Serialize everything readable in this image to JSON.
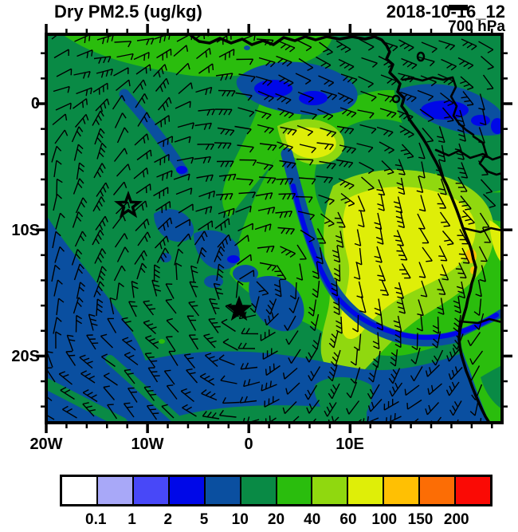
{
  "header": {
    "title_left": "Dry PM2.5 (ug/kg)",
    "title_right": "2018-10-16_12",
    "level": "700 hPa"
  },
  "map": {
    "x_ticks": [
      {
        "label": "20W",
        "lon": -20
      },
      {
        "label": "10W",
        "lon": -10
      },
      {
        "label": "0",
        "lon": 0
      },
      {
        "label": "10E",
        "lon": 10
      }
    ],
    "y_ticks": [
      {
        "label": "0",
        "lat": 0
      },
      {
        "label": "10S",
        "lat": -10
      },
      {
        "label": "20S",
        "lat": -20
      }
    ],
    "minor_tick_step_deg": 2,
    "extent": {
      "lon_min": -20,
      "lon_max": 25,
      "lat_min": -25.3,
      "lat_max": 5.5
    }
  },
  "colorbar": {
    "labels": [
      "0.1",
      "1",
      "2",
      "5",
      "10",
      "20",
      "40",
      "60",
      "100",
      "150",
      "200"
    ],
    "colors": [
      "#ffffff",
      "#a8a8f8",
      "#4848f8",
      "#0008e8",
      "#0a4fa0",
      "#098a45",
      "#2abd0d",
      "#90d80f",
      "#dfee08",
      "#ffc003",
      "#fc6d05",
      "#fa0a05"
    ]
  },
  "chart_data": {
    "type": "heatmap",
    "subtype": "filled-contour-map-with-wind-barbs",
    "title": "Dry PM2.5 (ug/kg)",
    "valid_time": "2018-10-16_12",
    "pressure_level": "700 hPa",
    "units": "ug/kg",
    "xlabel_ticks": [
      "20W",
      "10W",
      "0",
      "10E"
    ],
    "ylabel_ticks": [
      "0",
      "10S",
      "20S"
    ],
    "extent": {
      "lon_min": -20,
      "lon_max": 25,
      "lat_min": -25.3,
      "lat_max": 5.5
    },
    "bins": [
      {
        "range": "< 0.1",
        "color": "#ffffff"
      },
      {
        "range": "0.1 - 1",
        "color": "#a8a8f8"
      },
      {
        "range": "1 - 2",
        "color": "#4848f8"
      },
      {
        "range": "2 - 5",
        "color": "#0008e8"
      },
      {
        "range": "5 - 10",
        "color": "#0a4fa0"
      },
      {
        "range": "10 - 20",
        "color": "#098a45"
      },
      {
        "range": "20 - 40",
        "color": "#2abd0d"
      },
      {
        "range": "40 - 60",
        "color": "#90d80f"
      },
      {
        "range": "60 - 100",
        "color": "#dfee08"
      },
      {
        "range": "100 - 150",
        "color": "#ffc003"
      },
      {
        "range": "150 - 200",
        "color": "#fc6d05"
      },
      {
        "range": "> 200",
        "color": "#fa0a05"
      }
    ],
    "regions": [
      {
        "area": "western and central South Atlantic (west half of map)",
        "value_bin": "10-20"
      },
      {
        "area": "southwest corner and southern band below ~17S",
        "value_bin": "5-10"
      },
      {
        "area": "scattered patches: top-center near equator, mid-ocean streaks, sinuous band off Angola",
        "value_bin": "2-5 to 5-10"
      },
      {
        "area": "northeast quadrant / Gulf of Guinea outflow",
        "value_bin": "20-40"
      },
      {
        "area": "plume core off Angola coast centered ~5-15E, 5-15S",
        "value_bin": "60-100"
      },
      {
        "area": "fringe around plume core",
        "value_bin": "40-60"
      },
      {
        "area": "small coastal hotspot near ~22E, 12.5S",
        "value_bin": "100-150"
      }
    ],
    "markers": [
      {
        "style": "open-star",
        "lon": -12,
        "lat": -8.1
      },
      {
        "style": "filled-star",
        "lon": -1,
        "lat": -16.3
      }
    ],
    "overlay": {
      "type": "wind-barbs",
      "level": "700 hPa",
      "pattern": "easterly flow near the equator rotating anticyclonically around a subtropical high near 1W,16S"
    },
    "grid": false,
    "legend_position": "bottom horizontal colorbar"
  }
}
